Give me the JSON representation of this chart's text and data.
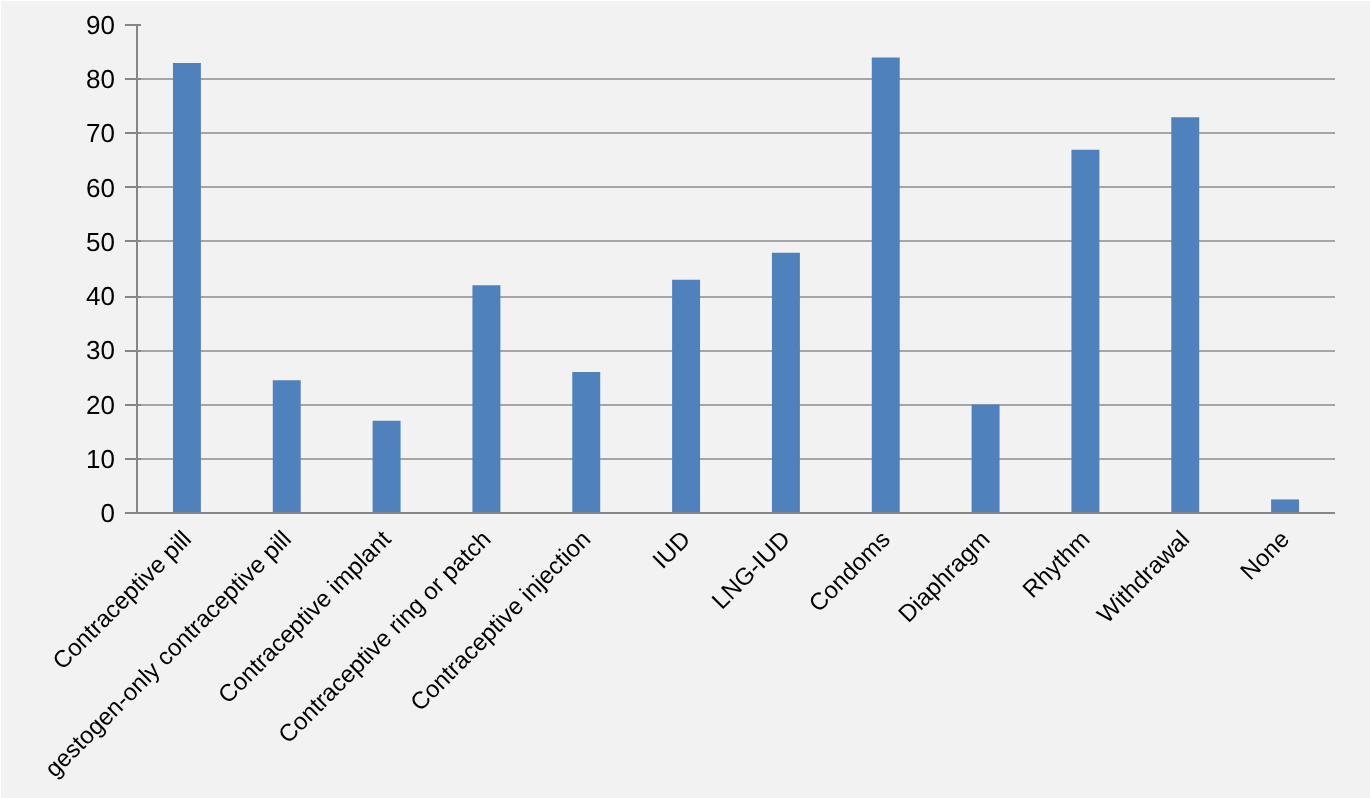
{
  "chart_data": {
    "type": "bar",
    "categories": [
      "Contraceptive pill",
      "gestogen-only contraceptive pill",
      "Contraceptive implant",
      "Contraceptive ring or patch",
      "Contraceptive injection",
      "IUD",
      "LNG-IUD",
      "Condoms",
      "Diaphragm",
      "Rhythm",
      "Withdrawal",
      "None"
    ],
    "values": [
      83,
      24.5,
      17,
      42,
      26,
      43,
      48,
      84,
      20,
      67,
      73,
      2.5
    ],
    "color": "#4f81bd",
    "ylim": [
      0,
      90
    ],
    "yticks": [
      0,
      10,
      20,
      30,
      40,
      50,
      60,
      70,
      80,
      90
    ],
    "grid": "y"
  }
}
